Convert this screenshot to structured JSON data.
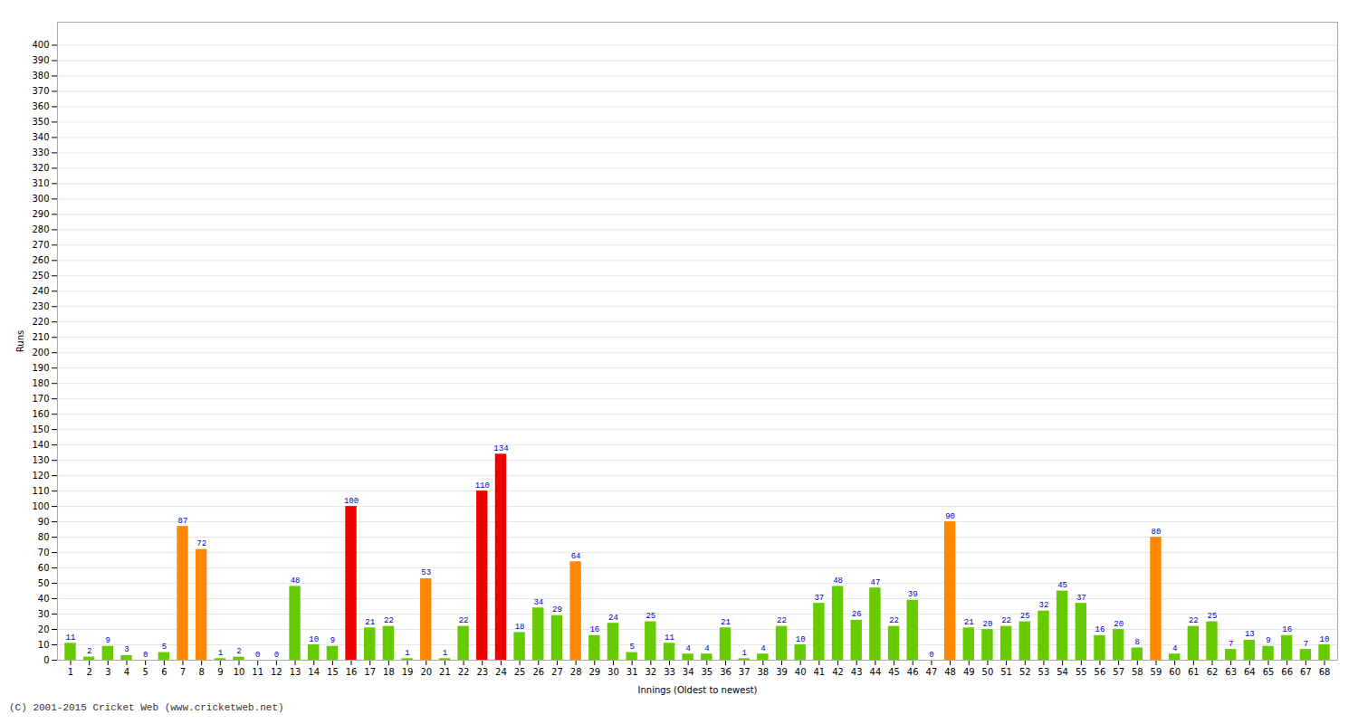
{
  "chart_data": {
    "type": "bar",
    "xlabel": "Innings (Oldest to newest)",
    "ylabel": "Runs",
    "annotations": [
      "(C) 2001-2015 Cricket Web (www.cricketweb.net)"
    ],
    "categories": [
      "1",
      "2",
      "3",
      "4",
      "5",
      "6",
      "7",
      "8",
      "9",
      "10",
      "11",
      "12",
      "13",
      "14",
      "15",
      "16",
      "17",
      "18",
      "19",
      "20",
      "21",
      "22",
      "23",
      "24",
      "25",
      "26",
      "27",
      "28",
      "29",
      "30",
      "31",
      "32",
      "33",
      "34",
      "35",
      "36",
      "37",
      "38",
      "39",
      "40",
      "41",
      "42",
      "43",
      "44",
      "45",
      "46",
      "47",
      "48",
      "49",
      "50",
      "51",
      "52",
      "53",
      "54",
      "55",
      "56",
      "57",
      "58",
      "59",
      "60",
      "61",
      "62",
      "63",
      "64",
      "65",
      "66",
      "67",
      "68"
    ],
    "values": [
      11,
      2,
      9,
      3,
      0,
      5,
      87,
      72,
      1,
      2,
      0,
      0,
      48,
      10,
      9,
      100,
      21,
      22,
      1,
      53,
      1,
      22,
      110,
      134,
      18,
      34,
      29,
      64,
      16,
      24,
      5,
      25,
      11,
      4,
      4,
      21,
      1,
      4,
      22,
      10,
      37,
      48,
      26,
      47,
      22,
      39,
      0,
      90,
      21,
      20,
      22,
      25,
      32,
      45,
      37,
      16,
      20,
      8,
      80,
      4,
      22,
      25,
      7,
      13,
      9,
      16,
      7,
      10
    ],
    "colors": [
      "#66cc00",
      "#66cc00",
      "#66cc00",
      "#66cc00",
      "#66cc00",
      "#66cc00",
      "#ff8800",
      "#ff8800",
      "#66cc00",
      "#66cc00",
      "#66cc00",
      "#66cc00",
      "#66cc00",
      "#66cc00",
      "#66cc00",
      "#ee0000",
      "#66cc00",
      "#66cc00",
      "#66cc00",
      "#ff8800",
      "#66cc00",
      "#66cc00",
      "#ee0000",
      "#ee0000",
      "#66cc00",
      "#66cc00",
      "#66cc00",
      "#ff8800",
      "#66cc00",
      "#66cc00",
      "#66cc00",
      "#66cc00",
      "#66cc00",
      "#66cc00",
      "#66cc00",
      "#66cc00",
      "#66cc00",
      "#66cc00",
      "#66cc00",
      "#66cc00",
      "#66cc00",
      "#66cc00",
      "#66cc00",
      "#66cc00",
      "#66cc00",
      "#66cc00",
      "#66cc00",
      "#ff8800",
      "#66cc00",
      "#66cc00",
      "#66cc00",
      "#66cc00",
      "#66cc00",
      "#66cc00",
      "#66cc00",
      "#66cc00",
      "#66cc00",
      "#66cc00",
      "#ff8800",
      "#66cc00",
      "#66cc00",
      "#66cc00",
      "#66cc00",
      "#66cc00",
      "#66cc00",
      "#66cc00",
      "#66cc00",
      "#66cc00"
    ],
    "ylim": [
      0,
      415
    ],
    "yticks": [
      0,
      10,
      20,
      30,
      40,
      50,
      60,
      70,
      80,
      90,
      100,
      110,
      120,
      130,
      140,
      150,
      160,
      170,
      180,
      190,
      200,
      210,
      220,
      230,
      240,
      250,
      260,
      270,
      280,
      290,
      300,
      310,
      320,
      330,
      340,
      350,
      360,
      370,
      380,
      390,
      400
    ],
    "grid": true,
    "data_labels": true
  }
}
